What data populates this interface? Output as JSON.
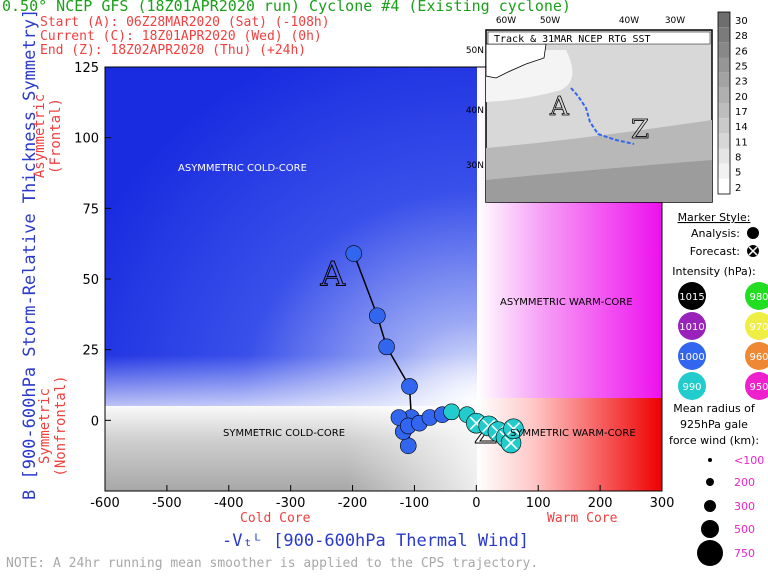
{
  "header": {
    "title": "0.50° NCEP GFS (18Z01APR2020 run) Cyclone #4 (Existing cyclone)",
    "start": "Start (A):   06Z28MAR2020 (Sat)    (-108h)",
    "current": "Current (C): 18Z01APR2020 (Wed)    (0h)",
    "end": "End (Z):     18Z02APR2020 (Thu)    (+24h)"
  },
  "axes": {
    "ylabel": "B [900-600hPa Storm-Relative Thickness Symmetry]",
    "y_asym_label": "Asymmetric (Frontal)",
    "y_sym_label": "Symmetric (Nonfrontal)",
    "xlabel": "-Vₜᴸ [900-600hPa Thermal Wind]",
    "x_cold": "Cold Core",
    "x_warm": "Warm Core"
  },
  "regions": {
    "asym_cold": "ASYMMETRIC COLD-CORE",
    "asym_warm": "ASYMMETRIC WARM-CORE",
    "sym_cold": "SYMMETRIC COLD-CORE",
    "sym_warm": "SYMMETRIC WARM-CORE"
  },
  "note": "NOTE:  A 24hr running mean smoother is applied to the CPS trajectory.",
  "inset": {
    "title": "Track & 31MAR NCEP RTG SST",
    "lon_labels": [
      "60W",
      "50W",
      "40W",
      "30W"
    ],
    "lat_labels": [
      "50N",
      "40N",
      "30N"
    ],
    "colorbar_labels": [
      "30",
      "28",
      "26",
      "25",
      "23",
      "20",
      "17",
      "14",
      "11",
      "8",
      "5",
      "2"
    ]
  },
  "legend": {
    "marker_style": "Marker Style:",
    "analysis": "Analysis:",
    "forecast": "Forecast:",
    "intensity": "Intensity (hPa):",
    "intensity_values": [
      {
        "label": "1015",
        "color": "#000000",
        "text": "#ffffff"
      },
      {
        "label": "980",
        "color": "#22dd22",
        "text": "#ffffff"
      },
      {
        "label": "1010",
        "color": "#9922bb",
        "text": "#ffffff"
      },
      {
        "label": "970",
        "color": "#eeee44",
        "text": "#ffffff"
      },
      {
        "label": "1000",
        "color": "#3366ee",
        "text": "#ffffff"
      },
      {
        "label": "960",
        "color": "#ee8833",
        "text": "#ffffff"
      },
      {
        "label": "990",
        "color": "#22cccc",
        "text": "#ffffff"
      },
      {
        "label": "950",
        "color": "#ee22cc",
        "text": "#ffffff"
      }
    ],
    "radius_title": "Mean radius of 925hPa gale force wind (km):",
    "radius_values": [
      "<100",
      "200",
      "300",
      "500",
      "750"
    ]
  },
  "chart_data": {
    "type": "scatter",
    "xlim": [
      -600,
      300
    ],
    "ylim": [
      -25,
      125
    ],
    "xticks": [
      -600,
      -500,
      -400,
      -300,
      -200,
      -100,
      0,
      100,
      200,
      300
    ],
    "yticks": [
      0,
      25,
      50,
      75,
      100,
      125
    ],
    "analysis": [
      {
        "x": -198,
        "y": 59,
        "color": "#3366ee"
      },
      {
        "x": -160,
        "y": 37,
        "color": "#3366ee"
      },
      {
        "x": -145,
        "y": 26,
        "color": "#3366ee"
      },
      {
        "x": -108,
        "y": 12,
        "color": "#3366ee"
      },
      {
        "x": -105,
        "y": 1,
        "color": "#3366ee"
      },
      {
        "x": -110,
        "y": -9,
        "color": "#3366ee"
      },
      {
        "x": -118,
        "y": -4,
        "color": "#3366ee"
      },
      {
        "x": -125,
        "y": 1,
        "color": "#3366ee"
      },
      {
        "x": -110,
        "y": -2,
        "color": "#3366ee"
      },
      {
        "x": -92,
        "y": -1,
        "color": "#3366ee"
      },
      {
        "x": -75,
        "y": 1,
        "color": "#3366ee"
      },
      {
        "x": -55,
        "y": 2,
        "color": "#3366ee"
      },
      {
        "x": -40,
        "y": 3,
        "color": "#22cccc"
      },
      {
        "x": -15,
        "y": 2,
        "color": "#22cccc"
      }
    ],
    "forecast": [
      {
        "x": 0,
        "y": -1,
        "color": "#22cccc"
      },
      {
        "x": 20,
        "y": -2,
        "color": "#22cccc"
      },
      {
        "x": 35,
        "y": -4,
        "color": "#22cccc"
      },
      {
        "x": 48,
        "y": -6,
        "color": "#22cccc"
      },
      {
        "x": 56,
        "y": -8,
        "color": "#22cccc"
      },
      {
        "x": 60,
        "y": -3,
        "color": "#22cccc"
      }
    ],
    "start_label": {
      "text": "A",
      "x": -232,
      "y": 52
    },
    "end_label": {
      "text": "Z",
      "x": 15,
      "y": -3
    }
  }
}
